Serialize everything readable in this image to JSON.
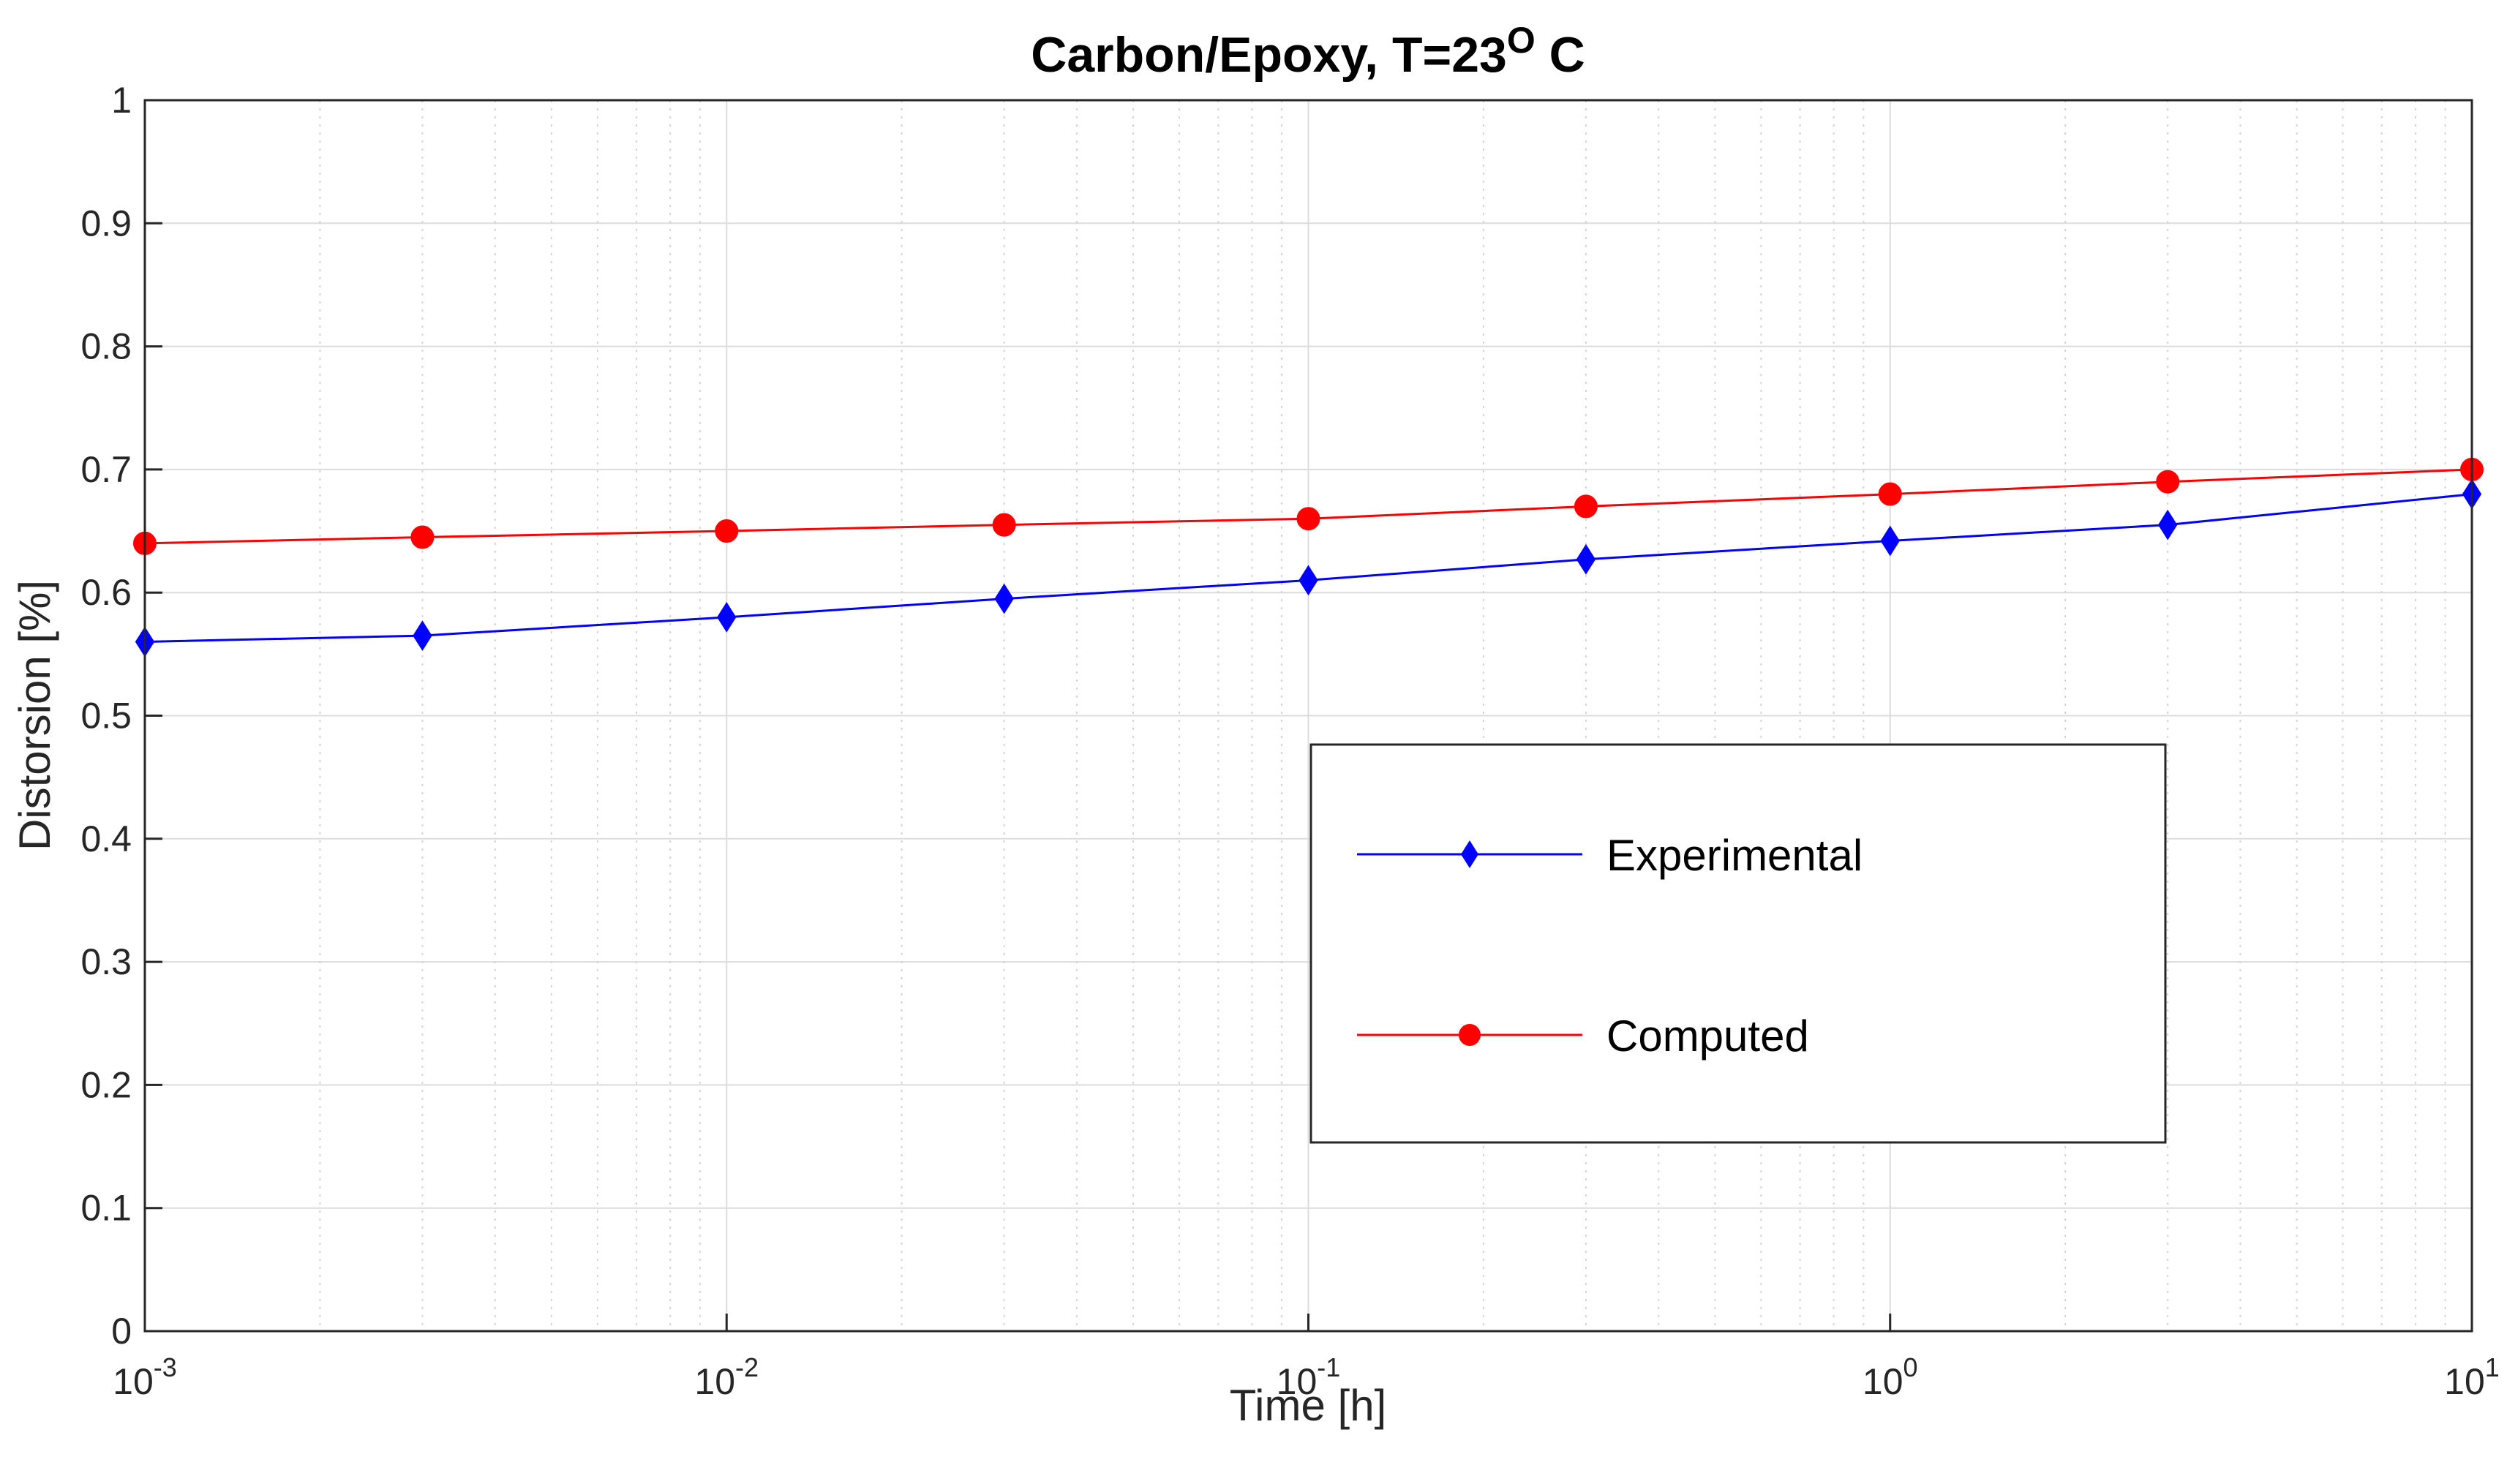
{
  "chart_data": {
    "type": "line",
    "title": {
      "main": "Carbon/Epoxy, T=23",
      "superscript": "O",
      "suffix": " C"
    },
    "xlabel": "Time [h]",
    "ylabel": "Distorsion [%]",
    "xscale": "log",
    "xlim": [
      0.001,
      10
    ],
    "ylim": [
      0,
      1
    ],
    "grid": true,
    "legend_position": "center-right",
    "yticks": [
      {
        "value": 0,
        "label": "0"
      },
      {
        "value": 0.1,
        "label": "0.1"
      },
      {
        "value": 0.2,
        "label": "0.2"
      },
      {
        "value": 0.3,
        "label": "0.3"
      },
      {
        "value": 0.4,
        "label": "0.4"
      },
      {
        "value": 0.5,
        "label": "0.5"
      },
      {
        "value": 0.6,
        "label": "0.6"
      },
      {
        "value": 0.7,
        "label": "0.7"
      },
      {
        "value": 0.8,
        "label": "0.8"
      },
      {
        "value": 0.9,
        "label": "0.9"
      },
      {
        "value": 1,
        "label": "1"
      }
    ],
    "xticks": [
      {
        "value": 0.001,
        "base": "10",
        "exp": "-3"
      },
      {
        "value": 0.01,
        "base": "10",
        "exp": "-2"
      },
      {
        "value": 0.1,
        "base": "10",
        "exp": "-1"
      },
      {
        "value": 1,
        "base": "10",
        "exp": "0"
      },
      {
        "value": 10,
        "base": "10",
        "exp": "1"
      }
    ],
    "x": [
      0.001,
      0.003,
      0.01,
      0.03,
      0.1,
      0.3,
      1,
      3,
      10
    ],
    "series": [
      {
        "name": "Experimental",
        "color": "#0000ff",
        "marker": "diamond",
        "values": [
          0.56,
          0.565,
          0.58,
          0.595,
          0.61,
          0.627,
          0.642,
          0.655,
          0.68
        ]
      },
      {
        "name": "Computed",
        "color": "#ff0000",
        "marker": "circle",
        "values": [
          0.64,
          0.645,
          0.65,
          0.655,
          0.66,
          0.67,
          0.68,
          0.69,
          0.7
        ]
      }
    ]
  }
}
